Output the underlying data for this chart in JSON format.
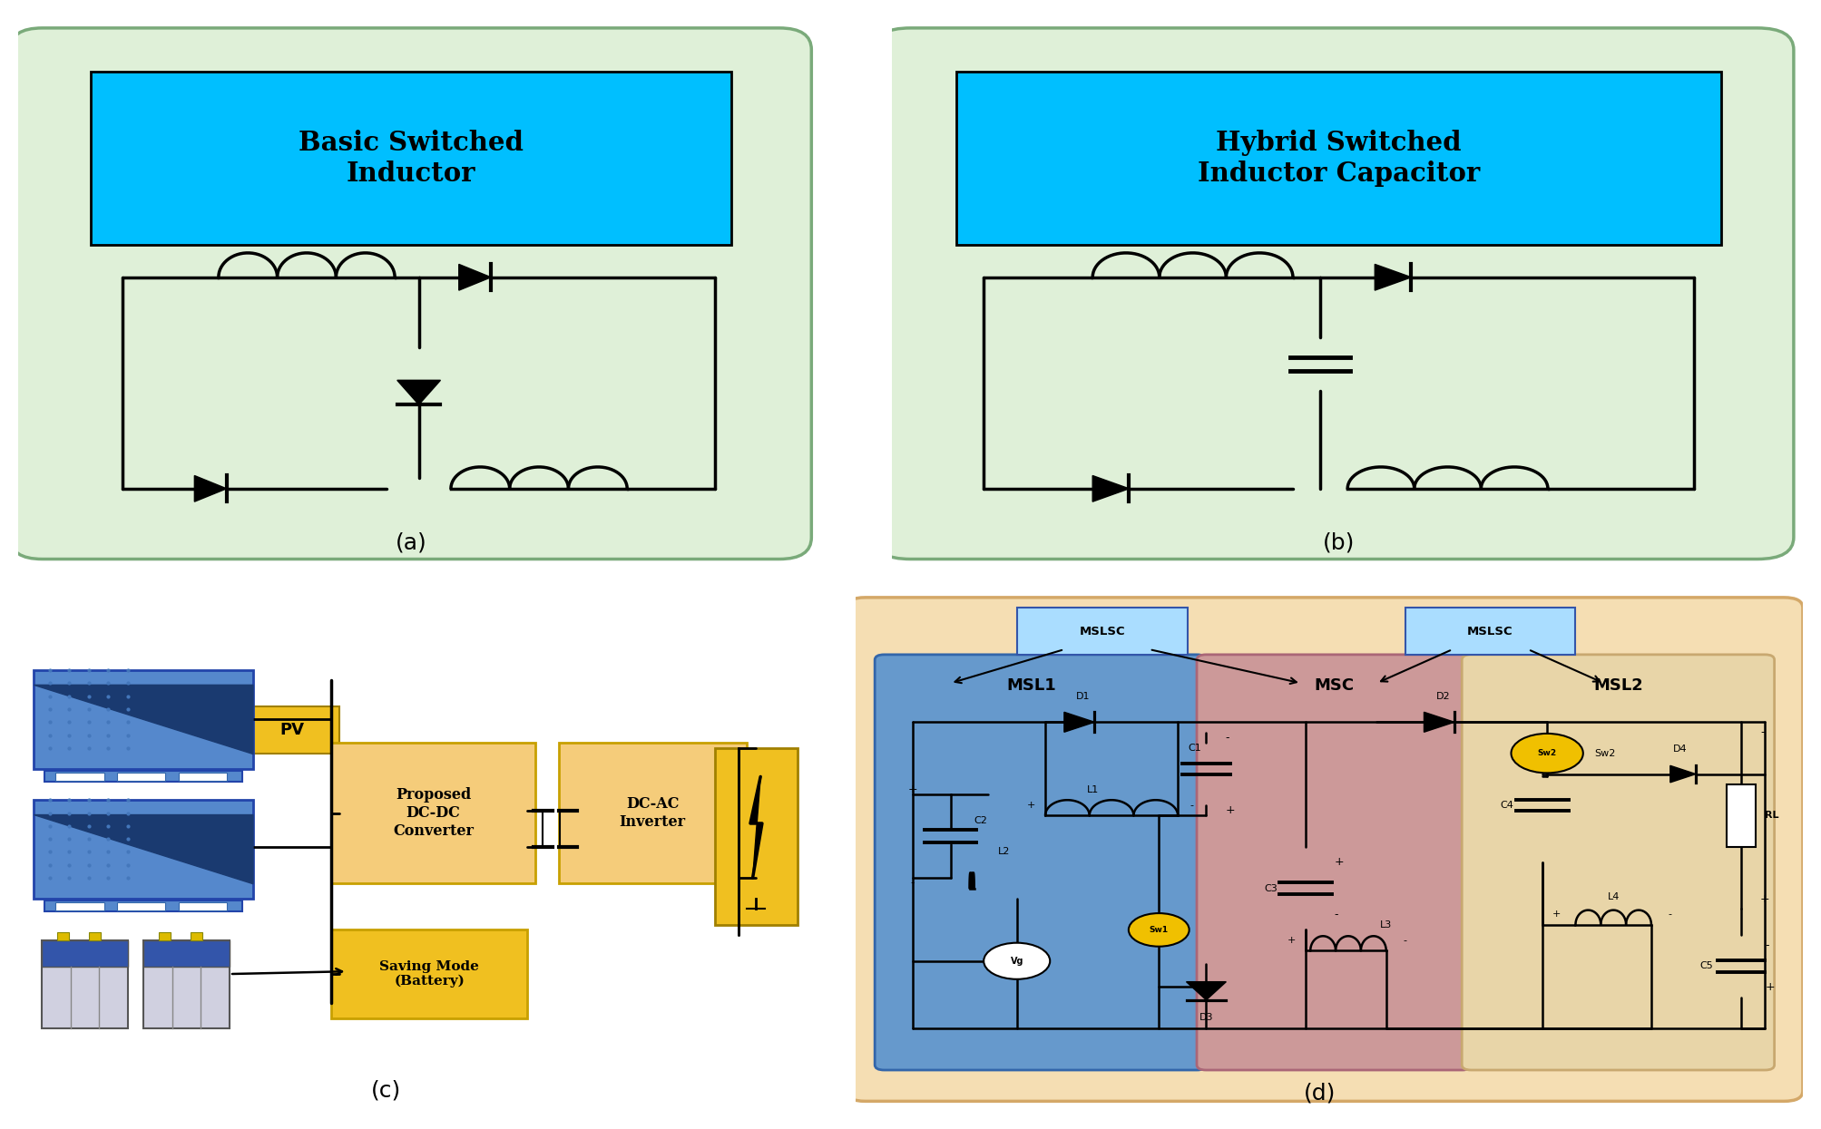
{
  "fig_width": 20.07,
  "fig_height": 12.45,
  "bg_color": "#ffffff",
  "panel_a": {
    "title": "Basic Switched\nInductor",
    "title_bg": "#00bfff",
    "box_bg": "#dff0d8",
    "box_edge": "#7aaa7a",
    "label": "(a)"
  },
  "panel_b": {
    "title": "Hybrid Switched\nInductor Capacitor",
    "title_bg": "#00bfff",
    "box_bg": "#dff0d8",
    "box_edge": "#7aaa7a",
    "label": "(b)"
  },
  "panel_c": {
    "label": "(c)",
    "pv_label": "PV",
    "pv_label_bg": "#f0c020",
    "box1_text": "Proposed\nDC-DC\nConverter",
    "box2_text": "DC-AC\nInverter",
    "box3_text": "Saving Mode\n(Battery)",
    "box_bg": "#f5cc7a",
    "box_edge": "#c8a000",
    "saving_bg": "#f0c020"
  },
  "panel_d": {
    "label": "(d)",
    "outer_bg": "#f5deb3",
    "outer_edge": "#d4a868",
    "msl1_bg": "#6699cc",
    "msl1_edge": "#3366aa",
    "msc_bg": "#cc9999",
    "msc_edge": "#aa6677",
    "msl2_bg": "#e8d5a8",
    "msl2_edge": "#c8a870",
    "mslsc_bg": "#aaddff",
    "mslsc_edge": "#3355aa"
  }
}
